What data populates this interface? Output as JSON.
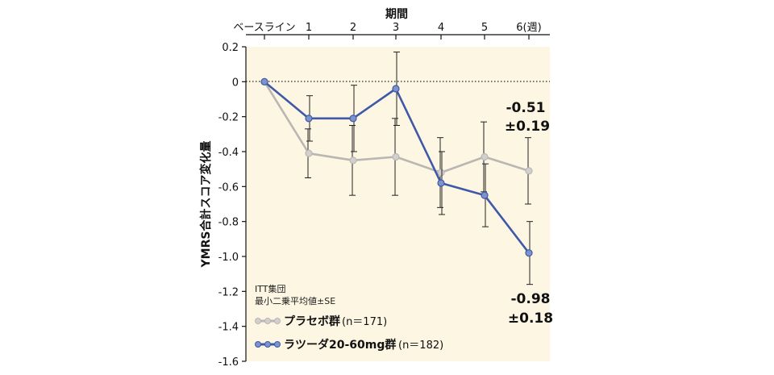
{
  "chart_data": {
    "type": "line",
    "xlabel": "期間",
    "ylabel": "YMRS合計スコア変化量",
    "categories": [
      "ベースライン",
      "1",
      "2",
      "3",
      "4",
      "5",
      "6(週)"
    ],
    "ylim": [
      -1.6,
      0.2
    ],
    "yticks": [
      "0.2",
      "0",
      "-0.2",
      "-0.4",
      "-0.6",
      "-0.8",
      "-1.0",
      "-1.2",
      "-1.4",
      "-1.6"
    ],
    "ytick_values": [
      0.2,
      0,
      -0.2,
      -0.4,
      -0.6,
      -0.8,
      -1.0,
      -1.2,
      -1.4,
      -1.6
    ],
    "reference_line": 0,
    "series": [
      {
        "name": "プラセボ群",
        "n_label": "(n＝171)",
        "color": "#b9b6b3",
        "marker_color": "#d2d0ce",
        "values": [
          0,
          -0.41,
          -0.45,
          -0.43,
          -0.52,
          -0.43,
          -0.51
        ],
        "errors": [
          0,
          0.14,
          0.2,
          0.22,
          0.2,
          0.2,
          0.19
        ]
      },
      {
        "name": "ラツーダ20-60mg群",
        "n_label": "(n＝182)",
        "color": "#3f58a8",
        "marker_color": "#7c93cc",
        "values": [
          0,
          -0.21,
          -0.21,
          -0.04,
          -0.58,
          -0.65,
          -0.98
        ],
        "errors": [
          0,
          0.13,
          0.19,
          0.21,
          0.18,
          0.18,
          0.18
        ]
      }
    ],
    "annotations": {
      "placebo_value": "-0.51",
      "placebo_se": "±0.19",
      "lurasidone_value": "-0.98",
      "lurasidone_se": "±0.18"
    },
    "notes": [
      "ITT集団",
      "最小二乗平均値±SE"
    ],
    "colors": {
      "plot_bg": "#fdf6e3",
      "axis": "#111111"
    }
  }
}
